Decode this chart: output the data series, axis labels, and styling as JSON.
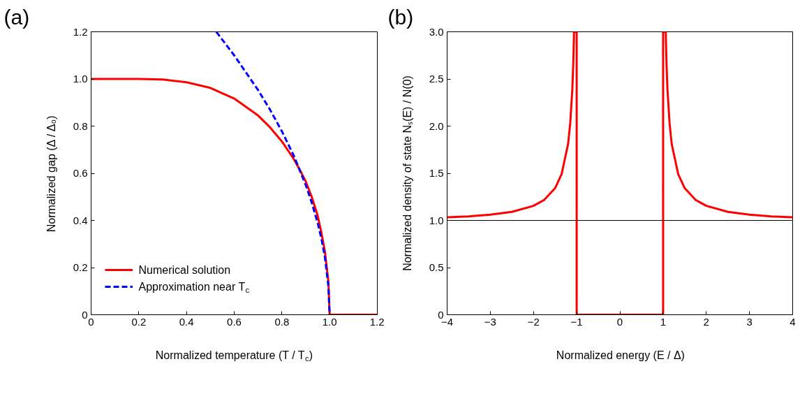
{
  "chart_data": [
    {
      "type": "line",
      "title": "(a)",
      "xlabel": "Normalized temperature (T / T$_{c}$)",
      "ylabel": "Normalized gap (Δ / Δ₀)",
      "xlim": [
        0,
        1.2
      ],
      "ylim": [
        0,
        1.2
      ],
      "xticks": [
        0,
        0.2,
        0.4,
        0.6,
        0.8,
        {
          "value": 1.0,
          "label": "1.0"
        },
        1.2
      ],
      "yticks": [
        0,
        0.2,
        0.4,
        0.6,
        0.8,
        {
          "value": 1.0,
          "label": "1.0"
        },
        1.2
      ],
      "grid": false,
      "legend": "bottom left",
      "series": [
        {
          "name": "Numerical solution",
          "color": "#ff0000",
          "line_style": "solid",
          "x": [
            0,
            0.1,
            0.2,
            0.3,
            0.4,
            0.5,
            0.6,
            0.7,
            0.75,
            0.8,
            0.85,
            0.875,
            0.9,
            0.925,
            0.95,
            0.965,
            0.98,
            0.995,
            1.0,
            1.2
          ],
          "values": [
            1.0,
            1.0,
            1.0,
            0.998,
            0.986,
            0.962,
            0.917,
            0.845,
            0.795,
            0.735,
            0.66,
            0.615,
            0.565,
            0.5,
            0.42,
            0.35,
            0.27,
            0.14,
            0,
            0
          ]
        },
        {
          "name": "Approximation near T$_{c}$",
          "color": "#0000ff",
          "line_style": "dashed",
          "x": [
            0.525,
            0.6,
            0.7,
            0.75,
            0.8,
            0.85,
            0.9,
            0.925,
            0.95,
            0.965,
            0.98,
            0.995,
            1.0
          ],
          "values": [
            1.2,
            1.1,
            0.953,
            0.87,
            0.778,
            0.674,
            0.55,
            0.476,
            0.389,
            0.326,
            0.246,
            0.12,
            0
          ]
        }
      ]
    },
    {
      "type": "line",
      "title": "(b)",
      "xlabel": "Normalized energy (E / Δ)",
      "ylabel": "Normalized density of state Nₛ(E) / N(0)",
      "xlim": [
        -4,
        4
      ],
      "ylim": [
        0,
        3.0
      ],
      "xticks": [
        -4,
        -3,
        -2,
        -1,
        0,
        1,
        2,
        3,
        4
      ],
      "yticks": [
        0,
        0.5,
        {
          "value": 1.0,
          "label": "1.0"
        },
        1.5,
        {
          "value": 2.0,
          "label": "2.0"
        },
        2.5,
        {
          "value": 3.0,
          "label": "3.0"
        }
      ],
      "grid": false,
      "ref_lines": [
        {
          "axis": "y",
          "value": 1.0,
          "color": "#000000"
        }
      ],
      "series": [
        {
          "color": "#ff0000",
          "line_style": "solid",
          "x": [
            -4,
            -3.5,
            -3,
            -2.5,
            -2,
            -1.75,
            -1.5,
            -1.35,
            -1.2,
            -1.15,
            -1.1,
            -1.08,
            -1.061,
            -1,
            -1,
            1,
            1,
            1.061,
            1.08,
            1.1,
            1.15,
            1.2,
            1.35,
            1.5,
            1.75,
            2,
            2.5,
            3,
            3.5,
            4
          ],
          "values": [
            1.033,
            1.043,
            1.061,
            1.091,
            1.155,
            1.218,
            1.342,
            1.49,
            1.809,
            2.03,
            2.4,
            2.66,
            3.0,
            3.0,
            0,
            0,
            3.0,
            3.0,
            2.66,
            2.4,
            2.03,
            1.809,
            1.49,
            1.342,
            1.218,
            1.155,
            1.091,
            1.061,
            1.043,
            1.033
          ]
        }
      ]
    }
  ]
}
